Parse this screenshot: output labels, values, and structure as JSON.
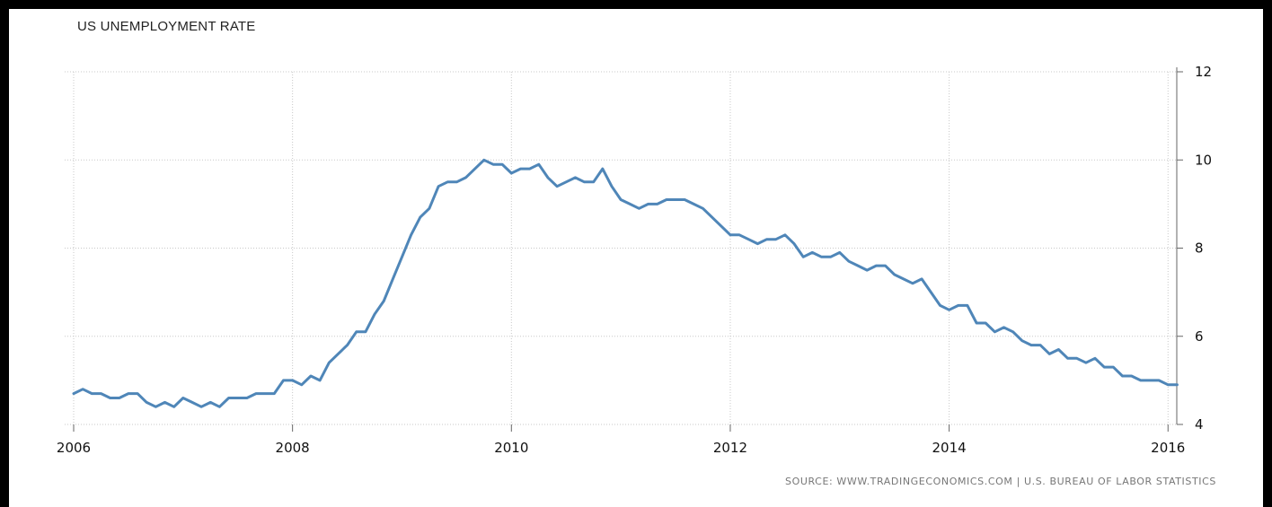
{
  "chart_data": {
    "type": "line",
    "title": "US UNEMPLOYMENT RATE",
    "source": "SOURCE: WWW.TRADINGECONOMICS.COM | U.S. BUREAU OF LABOR STATISTICS",
    "xlim": [
      2006,
      2016.08
    ],
    "ylim": [
      4,
      12
    ],
    "x_ticks": [
      2006,
      2008,
      2010,
      2012,
      2014,
      2016
    ],
    "x_tick_labels": [
      "2006",
      "2008",
      "2010",
      "2012",
      "2014",
      "2016"
    ],
    "y_ticks": [
      4,
      6,
      8,
      10,
      12
    ],
    "y_tick_labels": [
      "4",
      "6",
      "8",
      "10",
      "12"
    ],
    "y_axis_position": "right",
    "grid": true,
    "line_color": "#4f86b8",
    "series": [
      {
        "frequency": "monthly",
        "start": "2006-01",
        "values": [
          4.7,
          4.8,
          4.7,
          4.7,
          4.6,
          4.6,
          4.7,
          4.7,
          4.5,
          4.4,
          4.5,
          4.4,
          4.6,
          4.5,
          4.4,
          4.5,
          4.4,
          4.6,
          4.6,
          4.6,
          4.7,
          4.7,
          4.7,
          5.0,
          5.0,
          4.9,
          5.1,
          5.0,
          5.4,
          5.6,
          5.8,
          6.1,
          6.1,
          6.5,
          6.8,
          7.3,
          7.8,
          8.3,
          8.7,
          8.9,
          9.4,
          9.5,
          9.5,
          9.6,
          9.8,
          10.0,
          9.9,
          9.9,
          9.7,
          9.8,
          9.8,
          9.9,
          9.6,
          9.4,
          9.5,
          9.6,
          9.5,
          9.5,
          9.8,
          9.4,
          9.1,
          9.0,
          8.9,
          9.0,
          9.0,
          9.1,
          9.1,
          9.1,
          9.0,
          8.9,
          8.7,
          8.5,
          8.3,
          8.3,
          8.2,
          8.1,
          8.2,
          8.2,
          8.3,
          8.1,
          7.8,
          7.9,
          7.8,
          7.8,
          7.9,
          7.7,
          7.6,
          7.5,
          7.6,
          7.6,
          7.4,
          7.3,
          7.2,
          7.3,
          7.0,
          6.7,
          6.6,
          6.7,
          6.7,
          6.3,
          6.3,
          6.1,
          6.2,
          6.1,
          5.9,
          5.8,
          5.8,
          5.6,
          5.7,
          5.5,
          5.5,
          5.4,
          5.5,
          5.3,
          5.3,
          5.1,
          5.1,
          5.0,
          5.0,
          5.0,
          4.9,
          4.9
        ]
      }
    ]
  }
}
